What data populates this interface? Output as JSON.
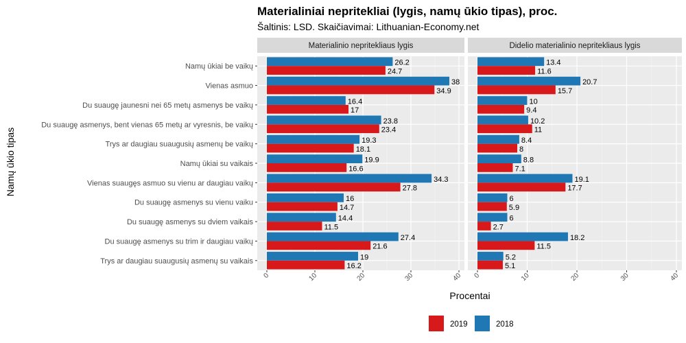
{
  "chart_data": {
    "type": "bar",
    "orientation": "horizontal",
    "title": "Materialiniai nepritekliai (lygis, namų ūkio tipas), proc.",
    "subtitle": "Šaltinis: LSD. Skaičiavimai: Lithuanian-Economy.net",
    "xlabel": "Procentai",
    "ylabel": "Namų ūkio tipas",
    "xlim": [
      0,
      40
    ],
    "x_ticks": [
      "0",
      "10",
      "20",
      "30",
      "40"
    ],
    "grid": true,
    "legend_position": "bottom",
    "legend": [
      {
        "name": "2019",
        "color": "#d7191c"
      },
      {
        "name": "2018",
        "color": "#1f78b4"
      }
    ],
    "categories": [
      "Namų ūkiai be vaikų",
      "Vienas asmuo",
      "Du suaugę jaunesni nei 65 metų asmenys be vaikų",
      "Du suaugę asmenys, bent vienas 65 metų ar vyresnis, be vaikų",
      "Trys ar daugiau suaugusių asmenų be vaikų",
      "Namų ūkiai su vaikais",
      "Vienas suaugęs asmuo su vienu ar daugiau vaikų",
      "Du suaugę asmenys su vienu vaiku",
      "Du suaugę asmenys su dviem vaikais",
      "Du suaugę asmenys su trim ir daugiau vaikų",
      "Trys ar daugiau suaugusių asmenų su vaikais"
    ],
    "panels": [
      {
        "title": "Materialinio nepritekliaus lygis",
        "series": [
          {
            "name": "2018",
            "values": [
              26.2,
              38,
              16.4,
              23.8,
              19.3,
              19.9,
              34.3,
              16,
              14.4,
              27.4,
              19
            ],
            "labels": [
              "26.2",
              "38",
              "16.4",
              "23.8",
              "19.3",
              "19.9",
              "34.3",
              "16",
              "14.4",
              "27.4",
              "19"
            ]
          },
          {
            "name": "2019",
            "values": [
              24.7,
              34.9,
              17,
              23.4,
              18.1,
              16.6,
              27.8,
              14.7,
              11.5,
              21.6,
              16.2
            ],
            "labels": [
              "24.7",
              "34.9",
              "17",
              "23.4",
              "18.1",
              "16.6",
              "27.8",
              "14.7",
              "11.5",
              "21.6",
              "16.2"
            ]
          }
        ]
      },
      {
        "title": "Didelio materialinio nepritekliaus lygis",
        "series": [
          {
            "name": "2018",
            "values": [
              13.4,
              20.7,
              10,
              10.2,
              8.4,
              8.8,
              19.1,
              6,
              6,
              18.2,
              5.2
            ],
            "labels": [
              "13.4",
              "20.7",
              "10",
              "10.2",
              "8.4",
              "8.8",
              "19.1",
              "6",
              "6",
              "18.2",
              "5.2"
            ]
          },
          {
            "name": "2019",
            "values": [
              11.6,
              15.7,
              9.4,
              11,
              8,
              7.1,
              17.7,
              5.9,
              2.7,
              11.5,
              5.1
            ],
            "labels": [
              "11.6",
              "15.7",
              "9.4",
              "11",
              "8",
              "7.1",
              "17.7",
              "5.9",
              "2.7",
              "11.5",
              "5.1"
            ]
          }
        ]
      }
    ]
  }
}
